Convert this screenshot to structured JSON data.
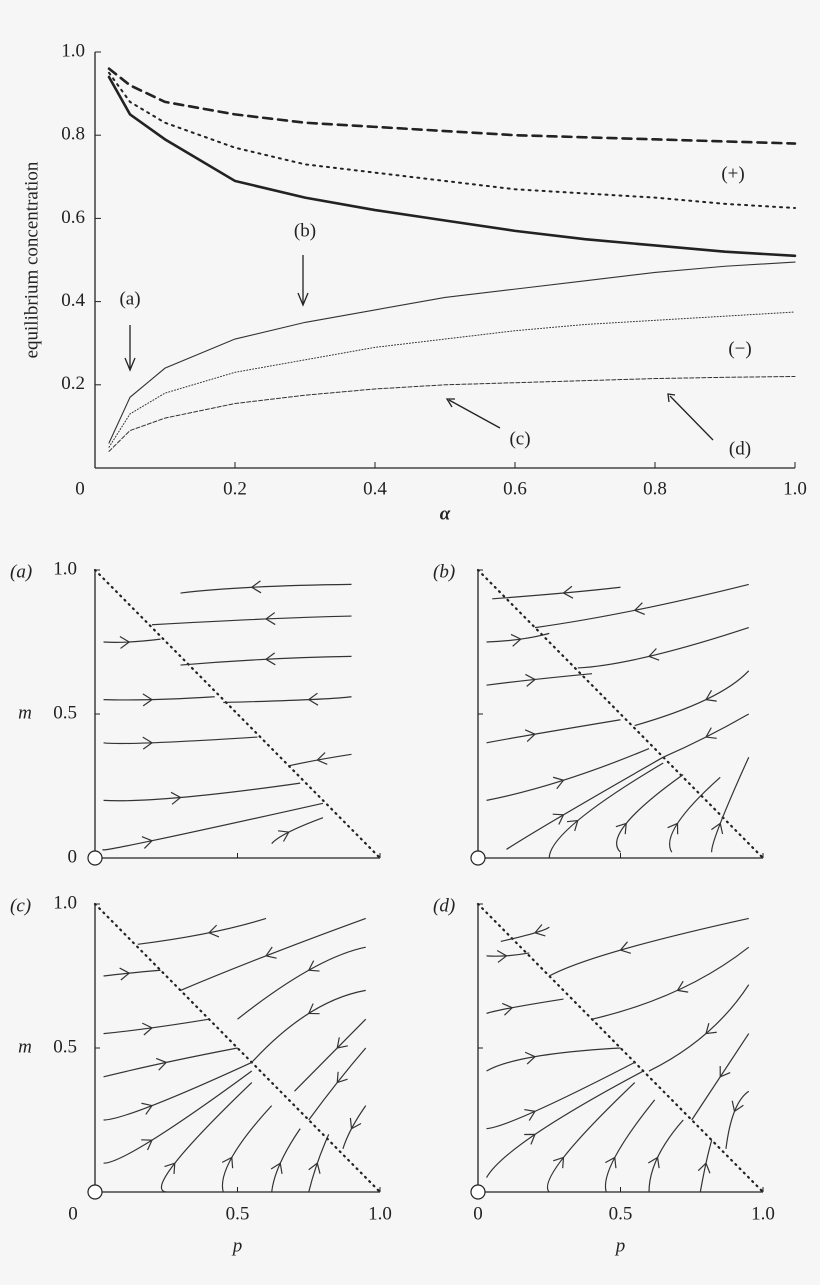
{
  "chart_data": [
    {
      "type": "line",
      "ylabel": "equilibrium concentration",
      "xlabel": "α",
      "x": [
        0.02,
        0.05,
        0.1,
        0.2,
        0.3,
        0.4,
        0.5,
        0.6,
        0.7,
        0.8,
        0.9,
        1.0
      ],
      "xlim": [
        0,
        1
      ],
      "ylim": [
        0,
        1
      ],
      "xticks": [
        0,
        0.2,
        0.4,
        0.6,
        0.8,
        {
          "value": 1,
          "label": "1.0"
        }
      ],
      "yticks": [
        0.2,
        0.4,
        0.6,
        0.8,
        {
          "value": 1,
          "label": "1.0"
        }
      ],
      "series": [
        {
          "color": "#222222",
          "width": 2.6,
          "dash": "9 6",
          "values": [
            0.96,
            0.92,
            0.88,
            0.85,
            0.83,
            0.82,
            0.81,
            0.8,
            0.795,
            0.79,
            0.785,
            0.78
          ]
        },
        {
          "color": "#222222",
          "width": 2,
          "dash": "2 5",
          "values": [
            0.95,
            0.88,
            0.83,
            0.77,
            0.73,
            0.71,
            0.69,
            0.67,
            0.66,
            0.65,
            0.635,
            0.625
          ]
        },
        {
          "color": "#222222",
          "width": 2.6,
          "dash": "none",
          "values": [
            0.94,
            0.85,
            0.79,
            0.69,
            0.65,
            0.62,
            0.595,
            0.57,
            0.55,
            0.535,
            0.52,
            0.51
          ]
        },
        {
          "color": "#333333",
          "width": 1.1,
          "dash": "none",
          "values": [
            0.06,
            0.17,
            0.24,
            0.31,
            0.35,
            0.38,
            0.41,
            0.43,
            0.45,
            0.47,
            0.485,
            0.495
          ]
        },
        {
          "color": "#333333",
          "width": 1,
          "dash": "1 2",
          "values": [
            0.05,
            0.13,
            0.18,
            0.23,
            0.26,
            0.29,
            0.31,
            0.33,
            0.345,
            0.355,
            0.365,
            0.375
          ]
        },
        {
          "color": "#333333",
          "width": 1,
          "dash": "4 2",
          "values": [
            0.04,
            0.09,
            0.12,
            0.155,
            0.175,
            0.19,
            0.2,
            0.205,
            0.21,
            0.215,
            0.218,
            0.22
          ]
        }
      ],
      "annotations": [
        "(a)",
        "(b)",
        "(c)",
        "(d)",
        "(+)",
        "(−)"
      ]
    },
    {
      "type": "stream",
      "xlabel": "p",
      "ylabel": "m",
      "xlim": [
        0,
        1
      ],
      "ylim": [
        0,
        1
      ],
      "xticks": [
        0,
        0.5,
        {
          "value": 1,
          "label": "1.0"
        }
      ],
      "yticks": [
        0,
        0.5,
        {
          "value": 1,
          "label": "1.0"
        }
      ],
      "color": "#333333",
      "panels": [
        {
          "label": "(a)",
          "trajectories": [
            {
              "x": [
                0.9,
                0.55,
                0.3
              ],
              "y": [
                0.95,
                0.94,
                0.92
              ]
            },
            {
              "x": [
                0.9,
                0.6,
                0.2
              ],
              "y": [
                0.84,
                0.83,
                0.81
              ]
            },
            {
              "x": [
                0.9,
                0.6,
                0.3
              ],
              "y": [
                0.7,
                0.69,
                0.67
              ]
            },
            {
              "x": [
                0.9,
                0.75,
                0.45
              ],
              "y": [
                0.56,
                0.55,
                0.54
              ]
            },
            {
              "x": [
                0.9,
                0.78,
                0.68
              ],
              "y": [
                0.36,
                0.34,
                0.32
              ]
            },
            {
              "x": [
                0.03,
                0.12,
                0.23
              ],
              "y": [
                0.75,
                0.75,
                0.76
              ]
            },
            {
              "x": [
                0.03,
                0.2,
                0.42
              ],
              "y": [
                0.55,
                0.55,
                0.56
              ]
            },
            {
              "x": [
                0.03,
                0.2,
                0.57
              ],
              "y": [
                0.4,
                0.4,
                0.42
              ]
            },
            {
              "x": [
                0.03,
                0.3,
                0.72
              ],
              "y": [
                0.2,
                0.21,
                0.26
              ]
            },
            {
              "x": [
                0.03,
                0.2,
                0.8
              ],
              "y": [
                0.03,
                0.06,
                0.19
              ]
            },
            {
              "x": [
                0.62,
                0.68,
                0.8
              ],
              "y": [
                0.05,
                0.09,
                0.14
              ]
            }
          ]
        },
        {
          "label": "(b)",
          "trajectories": [
            {
              "x": [
                0.5,
                0.3,
                0.05
              ],
              "y": [
                0.94,
                0.92,
                0.9
              ]
            },
            {
              "x": [
                0.95,
                0.55,
                0.2
              ],
              "y": [
                0.95,
                0.86,
                0.8
              ]
            },
            {
              "x": [
                0.95,
                0.6,
                0.35
              ],
              "y": [
                0.8,
                0.7,
                0.66
              ]
            },
            {
              "x": [
                0.95,
                0.8,
                0.55
              ],
              "y": [
                0.65,
                0.55,
                0.46
              ]
            },
            {
              "x": [
                0.95,
                0.8,
                0.65
              ],
              "y": [
                0.5,
                0.42,
                0.35
              ]
            },
            {
              "x": [
                0.03,
                0.15,
                0.25
              ],
              "y": [
                0.75,
                0.76,
                0.78
              ]
            },
            {
              "x": [
                0.03,
                0.2,
                0.4
              ],
              "y": [
                0.6,
                0.62,
                0.64
              ]
            },
            {
              "x": [
                0.03,
                0.2,
                0.5
              ],
              "y": [
                0.4,
                0.43,
                0.48
              ]
            },
            {
              "x": [
                0.03,
                0.3,
                0.6
              ],
              "y": [
                0.2,
                0.27,
                0.38
              ]
            },
            {
              "x": [
                0.1,
                0.3,
                0.65
              ],
              "y": [
                0.03,
                0.15,
                0.35
              ]
            },
            {
              "x": [
                0.25,
                0.35,
                0.65
              ],
              "y": [
                0.0,
                0.13,
                0.33
              ]
            },
            {
              "x": [
                0.5,
                0.52,
                0.72
              ],
              "y": [
                0.02,
                0.12,
                0.29
              ]
            },
            {
              "x": [
                0.68,
                0.7,
                0.85
              ],
              "y": [
                0.02,
                0.12,
                0.28
              ]
            },
            {
              "x": [
                0.82,
                0.85,
                0.95
              ],
              "y": [
                0.02,
                0.12,
                0.35
              ]
            }
          ]
        },
        {
          "label": "(c)",
          "trajectories": [
            {
              "x": [
                0.6,
                0.4,
                0.15
              ],
              "y": [
                0.95,
                0.9,
                0.86
              ]
            },
            {
              "x": [
                0.95,
                0.6,
                0.3
              ],
              "y": [
                0.95,
                0.82,
                0.7
              ]
            },
            {
              "x": [
                0.95,
                0.75,
                0.5
              ],
              "y": [
                0.85,
                0.77,
                0.6
              ]
            },
            {
              "x": [
                0.95,
                0.75,
                0.55
              ],
              "y": [
                0.7,
                0.62,
                0.45
              ]
            },
            {
              "x": [
                0.95,
                0.85,
                0.7
              ],
              "y": [
                0.6,
                0.5,
                0.35
              ]
            },
            {
              "x": [
                0.95,
                0.85,
                0.75
              ],
              "y": [
                0.5,
                0.38,
                0.25
              ]
            },
            {
              "x": [
                0.95,
                0.9,
                0.87
              ],
              "y": [
                0.3,
                0.22,
                0.15
              ]
            },
            {
              "x": [
                0.03,
                0.12,
                0.23
              ],
              "y": [
                0.75,
                0.76,
                0.77
              ]
            },
            {
              "x": [
                0.03,
                0.2,
                0.4
              ],
              "y": [
                0.55,
                0.57,
                0.6
              ]
            },
            {
              "x": [
                0.03,
                0.25,
                0.5
              ],
              "y": [
                0.4,
                0.45,
                0.5
              ]
            },
            {
              "x": [
                0.03,
                0.2,
                0.55
              ],
              "y": [
                0.25,
                0.3,
                0.45
              ]
            },
            {
              "x": [
                0.03,
                0.2,
                0.55
              ],
              "y": [
                0.1,
                0.18,
                0.42
              ]
            },
            {
              "x": [
                0.25,
                0.28,
                0.55
              ],
              "y": [
                0.0,
                0.1,
                0.38
              ]
            },
            {
              "x": [
                0.45,
                0.48,
                0.62
              ],
              "y": [
                0.0,
                0.12,
                0.3
              ]
            },
            {
              "x": [
                0.62,
                0.65,
                0.72
              ],
              "y": [
                0.0,
                0.1,
                0.22
              ]
            },
            {
              "x": [
                0.75,
                0.78,
                0.82
              ],
              "y": [
                0.0,
                0.1,
                0.2
              ]
            }
          ]
        },
        {
          "label": "(d)",
          "trajectories": [
            {
              "x": [
                0.25,
                0.2,
                0.08
              ],
              "y": [
                0.92,
                0.9,
                0.87
              ]
            },
            {
              "x": [
                0.95,
                0.5,
                0.25
              ],
              "y": [
                0.95,
                0.84,
                0.75
              ]
            },
            {
              "x": [
                0.95,
                0.7,
                0.4
              ],
              "y": [
                0.85,
                0.7,
                0.6
              ]
            },
            {
              "x": [
                0.95,
                0.8,
                0.6
              ],
              "y": [
                0.72,
                0.55,
                0.42
              ]
            },
            {
              "x": [
                0.95,
                0.85,
                0.75
              ],
              "y": [
                0.55,
                0.4,
                0.25
              ]
            },
            {
              "x": [
                0.95,
                0.9,
                0.87
              ],
              "y": [
                0.35,
                0.28,
                0.15
              ]
            },
            {
              "x": [
                0.03,
                0.1,
                0.18
              ],
              "y": [
                0.82,
                0.82,
                0.83
              ]
            },
            {
              "x": [
                0.03,
                0.12,
                0.3
              ],
              "y": [
                0.62,
                0.64,
                0.67
              ]
            },
            {
              "x": [
                0.03,
                0.2,
                0.5
              ],
              "y": [
                0.42,
                0.47,
                0.5
              ]
            },
            {
              "x": [
                0.03,
                0.2,
                0.55
              ],
              "y": [
                0.22,
                0.28,
                0.45
              ]
            },
            {
              "x": [
                0.03,
                0.2,
                0.58
              ],
              "y": [
                0.05,
                0.2,
                0.42
              ]
            },
            {
              "x": [
                0.25,
                0.3,
                0.55
              ],
              "y": [
                0.0,
                0.12,
                0.38
              ]
            },
            {
              "x": [
                0.45,
                0.48,
                0.62
              ],
              "y": [
                0.0,
                0.12,
                0.32
              ]
            },
            {
              "x": [
                0.6,
                0.63,
                0.72
              ],
              "y": [
                0.0,
                0.12,
                0.25
              ]
            },
            {
              "x": [
                0.78,
                0.8,
                0.82
              ],
              "y": [
                0.0,
                0.1,
                0.18
              ]
            }
          ]
        }
      ]
    }
  ]
}
